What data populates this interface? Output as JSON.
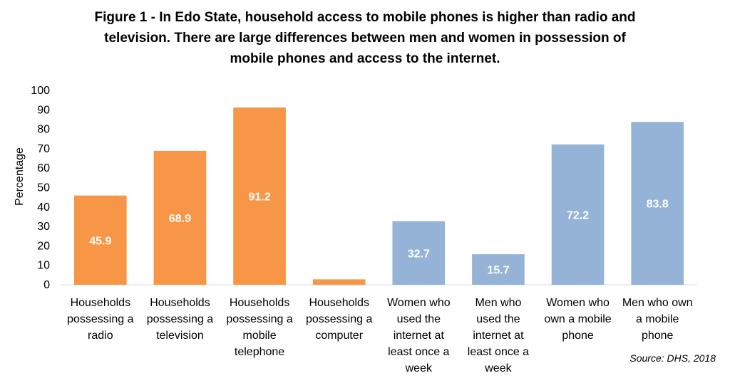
{
  "chart_data": {
    "type": "bar",
    "title_lines": [
      "Figure 1 - In Edo State, household access to mobile phones is higher than radio and",
      "television. There are large differences between men and women in possession of",
      "mobile phones and access to the internet."
    ],
    "xlabel": "",
    "ylabel": "Percentage",
    "ylim": [
      0,
      100
    ],
    "y_ticks": [
      0,
      10,
      20,
      30,
      40,
      50,
      60,
      70,
      80,
      90,
      100
    ],
    "grid": false,
    "categories": [
      "Households possessing a radio",
      "Households possessing a television",
      "Households possessing a mobile telephone",
      "Households possessing a computer",
      "Women who used the internet at least once a week",
      "Men who used the internet at least once a week",
      "Women who own a mobile phone",
      "Men who own a mobile phone"
    ],
    "category_lines": [
      [
        "Households",
        "possessing a",
        "radio"
      ],
      [
        "Households",
        "possessing a",
        "television"
      ],
      [
        "Households",
        "possessing a",
        "mobile",
        "telephone"
      ],
      [
        "Households",
        "possessing a",
        "computer"
      ],
      [
        "Women who",
        "used the",
        "internet at",
        "least once a",
        "week"
      ],
      [
        "Men who",
        "used the",
        "internet at",
        "least once a",
        "week"
      ],
      [
        "Women who",
        "own a mobile",
        "phone"
      ],
      [
        "Men who own",
        "a mobile",
        "phone"
      ]
    ],
    "values": [
      45.9,
      68.9,
      91.2,
      2.8,
      32.7,
      15.7,
      72.2,
      83.8
    ],
    "data_labels": [
      "45.9",
      "68.9",
      "91.2",
      "",
      "32.7",
      "15.7",
      "72.2",
      "83.8"
    ],
    "bar_colors": [
      "#F79646",
      "#F79646",
      "#F79646",
      "#F79646",
      "#95B3D7",
      "#95B3D7",
      "#95B3D7",
      "#95B3D7"
    ],
    "source": "Source: DHS, 2018"
  }
}
